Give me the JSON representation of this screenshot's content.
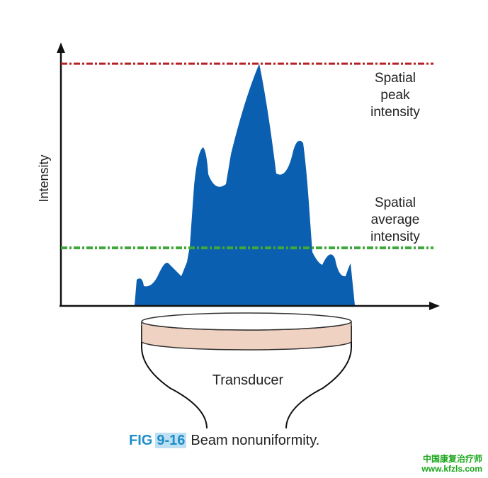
{
  "diagram": {
    "y_axis_label": "Intensity",
    "peak_label_lines": [
      "Spatial",
      "peak",
      "intensity"
    ],
    "average_label_lines": [
      "Spatial",
      "average",
      "intensity"
    ],
    "transducer_label": "Transducer"
  },
  "caption": {
    "fig_word": "FIG",
    "fig_number": "9-16",
    "text": "Beam nonuniformity."
  },
  "watermark": {
    "line1": "中国康复治疗师",
    "line2": "www.kfzls.com"
  },
  "colors": {
    "beam_fill": "#0b5fb0",
    "peak_line": "#b52025",
    "average_line": "#3fa83a",
    "transducer_face": "#f0d2c3",
    "caption_accent": "#1e8ec9",
    "watermark": "#1aa51a"
  }
}
